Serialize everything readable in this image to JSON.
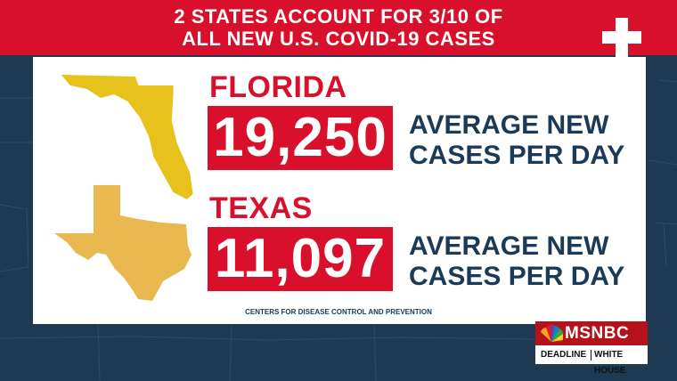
{
  "header": {
    "line1": "2 STATES ACCOUNT FOR 3/10 OF",
    "line2": "ALL NEW U.S. COVID-19 CASES"
  },
  "florida": {
    "name": "FLORIDA",
    "value": "19,250",
    "desc_line1": "AVERAGE NEW",
    "desc_line2": "CASES PER DAY"
  },
  "texas": {
    "name": "TEXAS",
    "value": "11,097",
    "desc_line1": "AVERAGE NEW",
    "desc_line2": "CASES PER DAY"
  },
  "source": "CENTERS FOR DISEASE CONTROL AND PREVENTION",
  "logo": {
    "brand": "MSNBC",
    "show_part1": "DEADLINE",
    "show_part2": "WHITE HOUSE"
  },
  "colors": {
    "accent_red": "#d8102b",
    "navy_text": "#1b3a57",
    "florida_yellow": "#e8c21c",
    "texas_yellow": "#e9b84f",
    "background": "#1d3a52"
  },
  "icons": [
    "cross-icon",
    "florida-map-icon",
    "texas-map-icon",
    "peacock-icon"
  ]
}
